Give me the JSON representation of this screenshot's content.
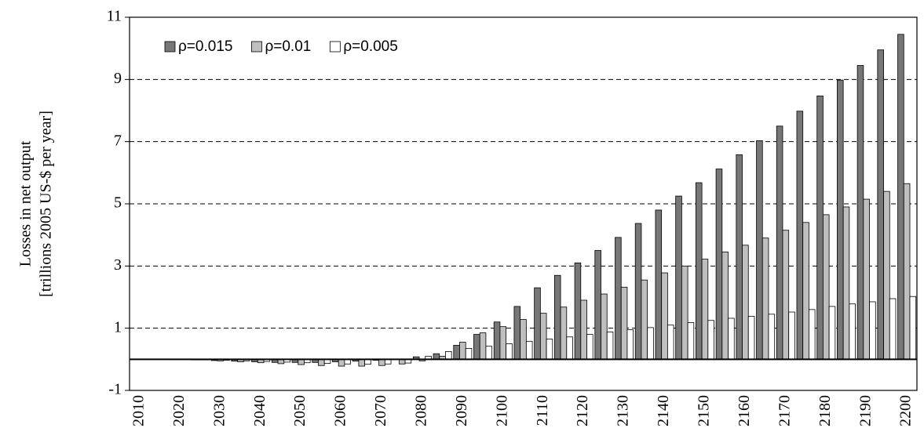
{
  "chart_data": {
    "type": "bar",
    "ylabel": [
      "Losses in net output",
      "[trillions 2005 US-$ per year]"
    ],
    "categories": [
      "2010",
      null,
      "2020",
      null,
      "2030",
      null,
      "2040",
      null,
      "2050",
      null,
      "2060",
      null,
      "2070",
      null,
      "2080",
      null,
      "2090",
      null,
      "2100",
      null,
      "2110",
      null,
      "2120",
      null,
      "2130",
      null,
      "2140",
      null,
      "2150",
      null,
      "2160",
      null,
      "2170",
      null,
      "2180",
      null,
      "2190",
      null,
      "2200"
    ],
    "series": [
      {
        "name": "ρ=0.015",
        "color": "#777777",
        "values": [
          0,
          0,
          -0.01,
          -0.02,
          -0.04,
          -0.06,
          -0.08,
          -0.1,
          -0.1,
          -0.1,
          -0.08,
          -0.06,
          -0.03,
          0,
          0.08,
          0.18,
          0.45,
          0.8,
          1.2,
          1.7,
          2.3,
          2.7,
          3.1,
          3.5,
          3.92,
          4.37,
          4.8,
          5.25,
          5.68,
          6.12,
          6.58,
          7.03,
          7.5,
          7.98,
          8.47,
          8.98,
          9.45,
          9.95,
          10.45
        ]
      },
      {
        "name": "ρ=0.01",
        "color": "#bfbfbf",
        "values": [
          0,
          0,
          -0.01,
          -0.02,
          -0.05,
          -0.08,
          -0.11,
          -0.14,
          -0.17,
          -0.2,
          -0.22,
          -0.22,
          -0.2,
          -0.15,
          -0.05,
          0.1,
          0.55,
          0.85,
          1.05,
          1.28,
          1.48,
          1.68,
          1.9,
          2.1,
          2.32,
          2.55,
          2.78,
          3.0,
          3.22,
          3.45,
          3.67,
          3.9,
          4.15,
          4.4,
          4.65,
          4.9,
          5.15,
          5.4,
          5.65
        ]
      },
      {
        "name": "ρ=0.005",
        "color": "#ffffff",
        "values": [
          0,
          0,
          -0.01,
          -0.02,
          -0.03,
          -0.05,
          -0.07,
          -0.09,
          -0.11,
          -0.13,
          -0.15,
          -0.16,
          -0.15,
          -0.12,
          0.1,
          0.25,
          0.35,
          0.42,
          0.5,
          0.58,
          0.65,
          0.72,
          0.8,
          0.88,
          0.95,
          1.02,
          1.1,
          1.18,
          1.25,
          1.32,
          1.38,
          1.45,
          1.52,
          1.6,
          1.7,
          1.78,
          1.85,
          1.95,
          2.02
        ]
      }
    ],
    "ylim": [
      -1,
      11
    ],
    "yticks": [
      -1,
      1,
      3,
      5,
      7,
      9,
      11
    ],
    "grid": true,
    "legend": "upper left"
  }
}
